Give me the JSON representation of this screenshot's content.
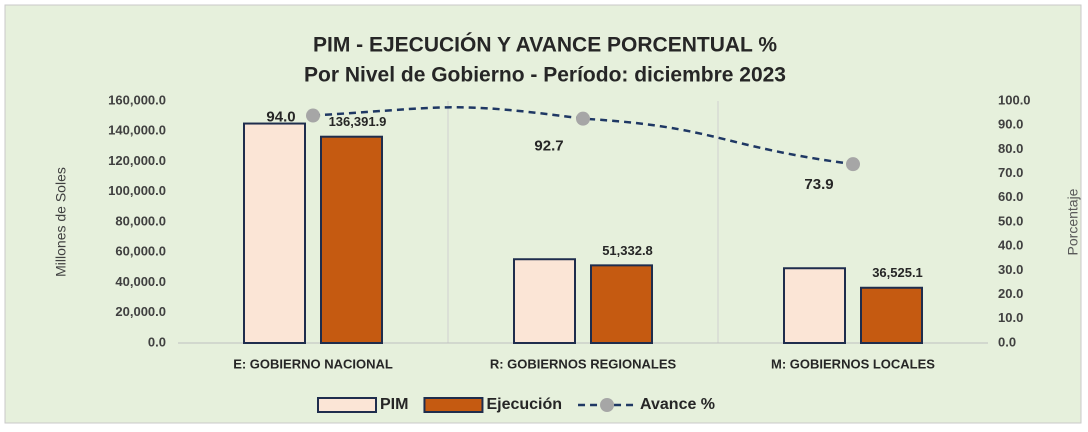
{
  "chart_data": {
    "type": "bar",
    "title": "PIM - EJECUCIÓN Y AVANCE PORCENTUAL %",
    "subtitle": "Por Nivel de Gobierno - Período: diciembre 2023",
    "y_label": "Millones de Soles",
    "y2_label": "Porcentaje",
    "categories": [
      "E: GOBIERNO NACIONAL",
      "R: GOBIERNOS REGIONALES",
      "M: GOBIERNOS LOCALES"
    ],
    "series": [
      {
        "name": "PIM",
        "type": "bar",
        "color": "#fbe5d6",
        "values": [
          145098,
          55375,
          49425
        ]
      },
      {
        "name": "Ejecución",
        "type": "bar",
        "color": "#c55a11",
        "values": [
          136391.9,
          51332.8,
          36525.1
        ],
        "value_labels": [
          "136,391.9",
          "51,332.8",
          "36,525.1"
        ]
      },
      {
        "name": "Avance %",
        "type": "line",
        "axis": "y2",
        "color": "#1f3864",
        "marker_color": "#a6a6a6",
        "values": [
          94,
          92.7,
          73.9
        ],
        "value_labels": [
          "94.0",
          "92.7",
          "73.9"
        ]
      }
    ],
    "ylim": [
      0,
      160000
    ],
    "yticks": [
      {
        "value": 0,
        "label": "0.0"
      },
      {
        "value": 20000,
        "label": "20,000.0"
      },
      {
        "value": 40000,
        "label": "40,000.0"
      },
      {
        "value": 60000,
        "label": "60,000.0"
      },
      {
        "value": 80000,
        "label": "80,000.0"
      },
      {
        "value": 100000,
        "label": "100,000.0"
      },
      {
        "value": 120000,
        "label": "120,000.0"
      },
      {
        "value": 140000,
        "label": "140,000.0"
      },
      {
        "value": 160000,
        "label": "160,000.0"
      }
    ],
    "y2lim": [
      0,
      100
    ],
    "y2ticks": [
      {
        "value": 0,
        "label": "0.0"
      },
      {
        "value": 10,
        "label": "10.0"
      },
      {
        "value": 20,
        "label": "20.0"
      },
      {
        "value": 30,
        "label": "30.0"
      },
      {
        "value": 40,
        "label": "40.0"
      },
      {
        "value": 50,
        "label": "50.0"
      },
      {
        "value": 60,
        "label": "60.0"
      },
      {
        "value": 70,
        "label": "70.0"
      },
      {
        "value": 80,
        "label": "80.0"
      },
      {
        "value": 90,
        "label": "90.0"
      },
      {
        "value": 100,
        "label": "100.0"
      }
    ],
    "legend": "bottom"
  }
}
